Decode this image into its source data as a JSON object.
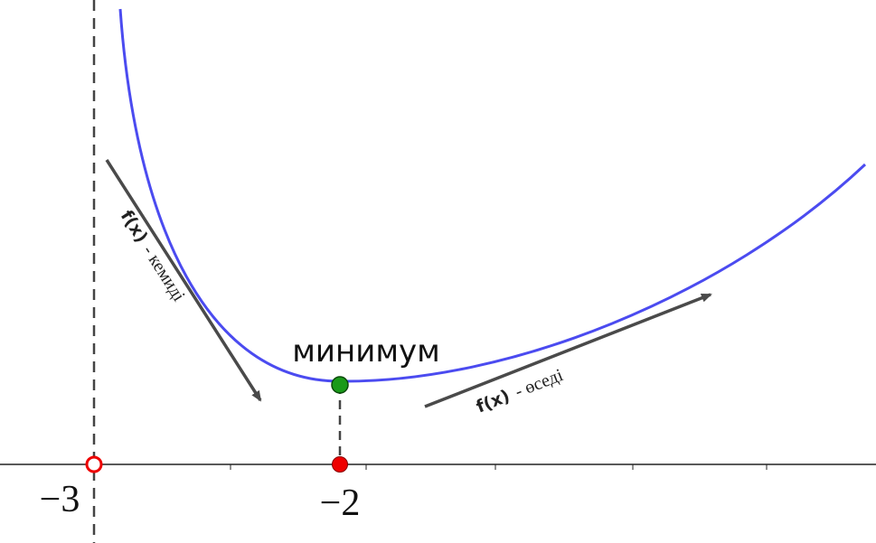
{
  "annotations": {
    "minimum": "минимум",
    "decreasing": {
      "function": "f(x)",
      "text": "- кемиді"
    },
    "increasing": {
      "function": "f(x)",
      "text": "- өседі"
    }
  },
  "x_axis": {
    "labels": [
      "−3",
      "−2"
    ]
  }
}
